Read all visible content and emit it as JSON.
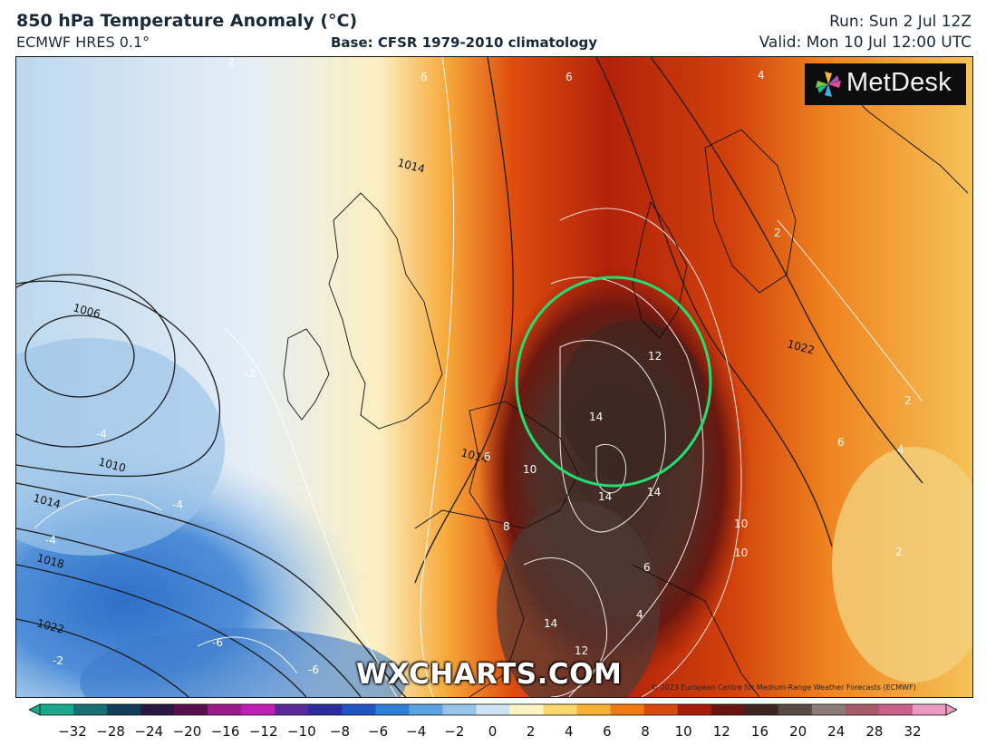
{
  "header": {
    "title": "850 hPa Temperature Anomaly (°C)",
    "model": "ECMWF HRES 0.1°",
    "base": "Base: CFSR 1979-2010 climatology",
    "run": "Run: Sun 2 Jul 12Z",
    "valid": "Valid: Mon 10 Jul 12:00 UTC"
  },
  "brand": {
    "name": "MetDesk",
    "icon": "pinwheel-logo-icon"
  },
  "watermark": "WXCHARTS.COM",
  "copyright": "© 2023 European Centre for Medium-Range Weather Forecasts (ECMWF)",
  "map": {
    "isobar_labels": [
      "1006",
      "1010",
      "1014",
      "1018",
      "1022",
      "1014",
      "1014",
      "1022"
    ],
    "anomaly_labels": [
      "6",
      "6",
      "4",
      "2",
      "2",
      "2",
      "4",
      "12",
      "14",
      "14",
      "14",
      "14",
      "12",
      "10",
      "10",
      "10",
      "8",
      "6",
      "6",
      "4",
      "6",
      "-2",
      "-4",
      "-4",
      "-4",
      "-6",
      "-6",
      "-2",
      "2"
    ],
    "highlight_color": "#22e070"
  },
  "colorbar": {
    "ticks": [
      "−32",
      "−28",
      "−24",
      "−20",
      "−16",
      "−12",
      "−10",
      "−8",
      "−6",
      "−4",
      "−2",
      "0",
      "2",
      "4",
      "6",
      "8",
      "10",
      "12",
      "16",
      "20",
      "24",
      "28",
      "32"
    ],
    "colors": [
      "#1aa88a",
      "#1a6f73",
      "#133d5a",
      "#2a1840",
      "#5a0f4f",
      "#9a1a8a",
      "#c01fb6",
      "#5a2a9a",
      "#2c2c9c",
      "#1f54c2",
      "#2e80d4",
      "#5aa2e0",
      "#98c4e8",
      "#cfe2f1",
      "#fff3c4",
      "#fbd66b",
      "#f7b032",
      "#ef7a12",
      "#d9480c",
      "#a51c08",
      "#6a1610",
      "#3b2620",
      "#5a4a46",
      "#8a7c78",
      "#a85a6a",
      "#c8608a",
      "#e89ac0"
    ]
  }
}
